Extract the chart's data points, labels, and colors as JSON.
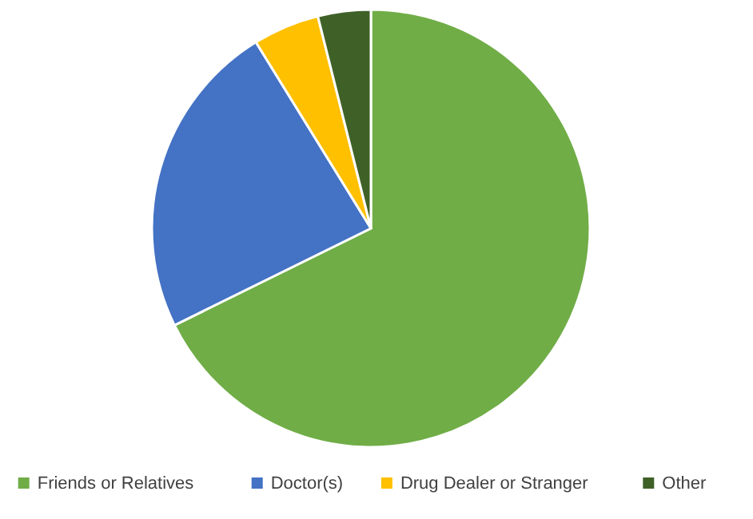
{
  "chart_data": {
    "type": "pie",
    "categories": [
      "Friends or Relatives",
      "Doctor(s)",
      "Drug Dealer or Stranger",
      "Other"
    ],
    "values": [
      67.7,
      23.5,
      4.9,
      3.9
    ],
    "colors": [
      "#70ad47",
      "#4472c4",
      "#ffc000",
      "#3f6128"
    ],
    "legend": "bottom"
  }
}
